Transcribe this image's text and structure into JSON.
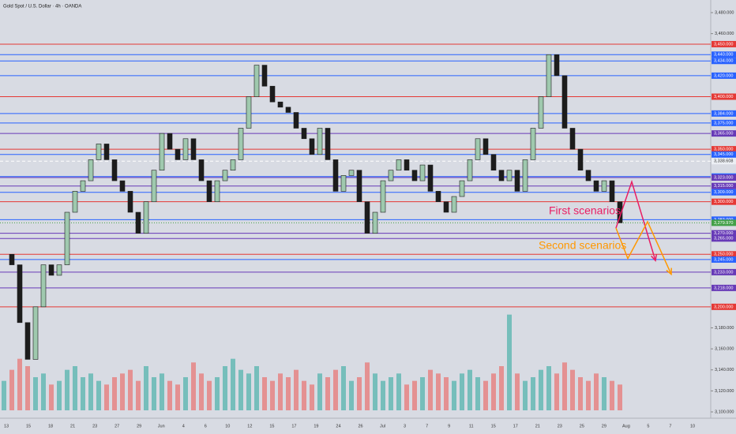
{
  "chart_data": {
    "type": "candlestick",
    "title": "Gold Spot / U.S. Dollar · 4h · OANDA",
    "ylim": [
      3100,
      3480
    ],
    "yticks": [
      {
        "value": 3480,
        "label": "3,480.000"
      },
      {
        "value": 3460,
        "label": "3,460.000"
      },
      {
        "value": 3180,
        "label": "3,180.000"
      },
      {
        "value": 3160,
        "label": "3,160.000"
      },
      {
        "value": 3140,
        "label": "3,140.000"
      },
      {
        "value": 3120,
        "label": "3,120.000"
      },
      {
        "value": 3100,
        "label": "3,100.000"
      }
    ],
    "levels": [
      {
        "value": 3450,
        "label": "3,450.000",
        "color": "#e53935"
      },
      {
        "value": 3440,
        "label": "3,440.000",
        "color": "#2962ff"
      },
      {
        "value": 3434,
        "label": "3,434.000",
        "color": "#2962ff"
      },
      {
        "value": 3420,
        "label": "3,420.000",
        "color": "#2962ff"
      },
      {
        "value": 3400,
        "label": "3,400.000",
        "color": "#e53935"
      },
      {
        "value": 3384,
        "label": "3,384.000",
        "color": "#2962ff"
      },
      {
        "value": 3375,
        "label": "3,375.000",
        "color": "#2962ff"
      },
      {
        "value": 3365,
        "label": "3,365.000",
        "color": "#673ab7"
      },
      {
        "value": 3350,
        "label": "3,350.000",
        "color": "#e53935"
      },
      {
        "value": 3345,
        "label": "3,345.000",
        "color": "#2962ff"
      },
      {
        "value": 3324,
        "label": "3,324.000",
        "color": "#2962ff"
      },
      {
        "value": 3323,
        "label": "3,323.000",
        "color": "#673ab7"
      },
      {
        "value": 3315,
        "label": "3,315.000",
        "color": "#673ab7"
      },
      {
        "value": 3309,
        "label": "3,309.000",
        "color": "#2962ff"
      },
      {
        "value": 3300,
        "label": "3,300.000",
        "color": "#e53935"
      },
      {
        "value": 3283,
        "label": "3,283.000",
        "color": "#2962ff"
      },
      {
        "value": 3270,
        "label": "3,270.000",
        "color": "#673ab7"
      },
      {
        "value": 3265,
        "label": "3,265.000",
        "color": "#673ab7"
      },
      {
        "value": 3250,
        "label": "3,250.000",
        "color": "#e53935"
      },
      {
        "value": 3245,
        "label": "3,245.000",
        "color": "#2962ff"
      },
      {
        "value": 3233,
        "label": "3,233.000",
        "color": "#673ab7"
      },
      {
        "value": 3218,
        "label": "3,218.000",
        "color": "#673ab7"
      },
      {
        "value": 3200,
        "label": "3,200.000",
        "color": "#e53935"
      }
    ],
    "previous_close": {
      "value": 3338.608,
      "label": "3,338.608"
    },
    "last_price": {
      "value": 3279.97,
      "label": "3,279.970"
    },
    "x_labels": [
      "13",
      "15",
      "18",
      "21",
      "23",
      "27",
      "29",
      "Jun",
      "4",
      "6",
      "10",
      "12",
      "15",
      "17",
      "19",
      "24",
      "26",
      "Jul",
      "3",
      "7",
      "9",
      "11",
      "15",
      "17",
      "21",
      "23",
      "25",
      "29",
      "Aug",
      "5",
      "7",
      "10"
    ],
    "close": [
      3250,
      3240,
      3185,
      3150,
      3200,
      3240,
      3230,
      3240,
      3290,
      3310,
      3320,
      3340,
      3355,
      3340,
      3320,
      3310,
      3290,
      3270,
      3300,
      3330,
      3365,
      3350,
      3340,
      3360,
      3340,
      3320,
      3300,
      3320,
      3330,
      3340,
      3370,
      3400,
      3430,
      3410,
      3395,
      3390,
      3385,
      3370,
      3360,
      3345,
      3370,
      3340,
      3310,
      3325,
      3330,
      3300,
      3270,
      3290,
      3320,
      3330,
      3340,
      3330,
      3320,
      3335,
      3310,
      3300,
      3290,
      3305,
      3320,
      3340,
      3360,
      3345,
      3330,
      3320,
      3330,
      3310,
      3340,
      3370,
      3400,
      3440,
      3420,
      3370,
      3350,
      3330,
      3320,
      3310,
      3320,
      3300,
      3280
    ],
    "volume_ylim": [
      0,
      150
    ],
    "volume": [
      40,
      55,
      70,
      60,
      45,
      50,
      35,
      40,
      55,
      60,
      45,
      50,
      40,
      35,
      45,
      50,
      55,
      40,
      60,
      45,
      50,
      40,
      35,
      45,
      65,
      50,
      40,
      45,
      60,
      70,
      55,
      50,
      60,
      45,
      40,
      50,
      45,
      55,
      40,
      35,
      50,
      45,
      55,
      60,
      40,
      45,
      65,
      50,
      40,
      45,
      50,
      35,
      40,
      45,
      55,
      50,
      45,
      40,
      50,
      55,
      45,
      40,
      50,
      60,
      130,
      50,
      40,
      45,
      55,
      60,
      50,
      65,
      55,
      45,
      40,
      50,
      45,
      40,
      35
    ],
    "scenarios": [
      {
        "name": "First scenarios",
        "color": "#e91e63",
        "x": [
          77.5,
          79.5,
          82.5
        ],
        "values": [
          3275,
          3319,
          3244
        ]
      },
      {
        "name": "Second scenarios",
        "color": "#ff9800",
        "x": [
          77.5,
          79,
          81.5,
          84.5
        ],
        "values": [
          3275,
          3246,
          3281,
          3231
        ]
      }
    ]
  }
}
